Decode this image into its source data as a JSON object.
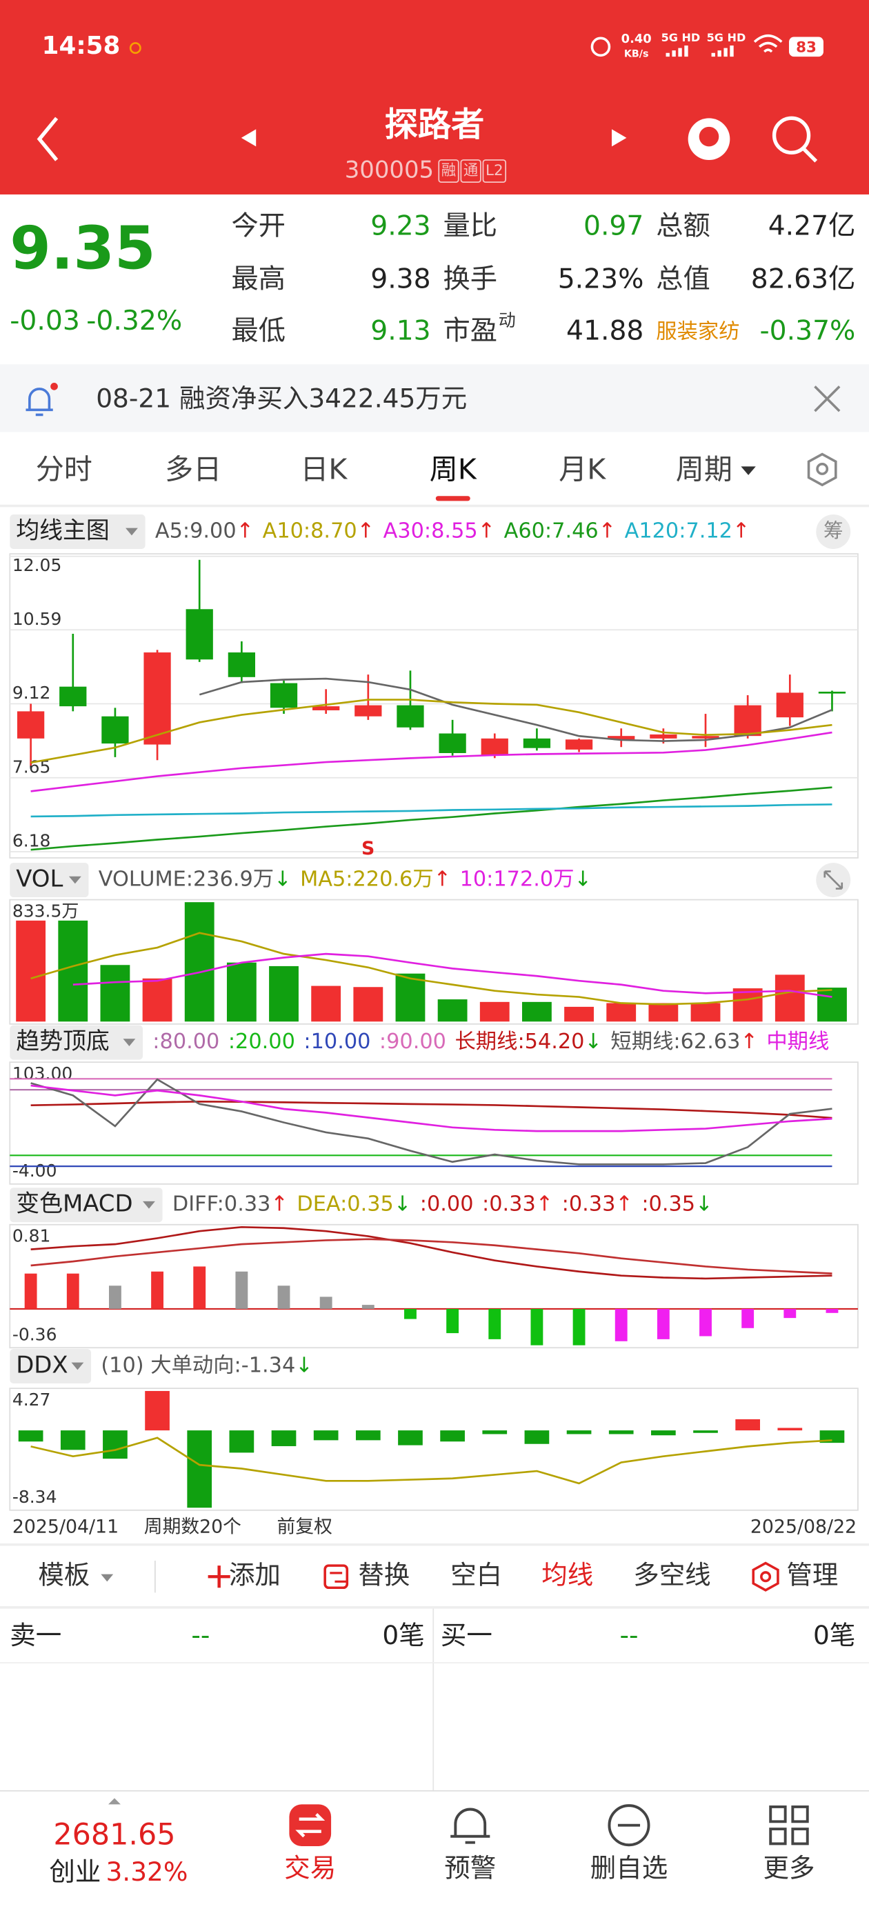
{
  "status_bar": {
    "time": "14:58",
    "speed": "0.40",
    "speed_unit": "KB/s",
    "net_1": "5G HD",
    "net_2": "5G HD",
    "battery": "83"
  },
  "header": {
    "title": "探路者",
    "code": "300005",
    "badges": [
      "融",
      "通",
      "L2"
    ]
  },
  "quote": {
    "price": "9.35",
    "change": "-0.03",
    "change_pct": "-0.32%",
    "price_color": "#1a9a1a",
    "fields": [
      [
        {
          "label": "今开",
          "value": "9.23",
          "color": "#1a9a1a"
        },
        {
          "label": "最高",
          "value": "9.38",
          "color": "#222222"
        },
        {
          "label": "最低",
          "value": "9.13",
          "color": "#1a9a1a"
        }
      ],
      [
        {
          "label": "量比",
          "value": "0.97",
          "color": "#1a9a1a"
        },
        {
          "label": "换手",
          "value": "5.23%",
          "color": "#222222"
        },
        {
          "label": "市盈",
          "sup": "动",
          "value": "41.88",
          "color": "#222222"
        }
      ],
      [
        {
          "label": "总额",
          "value": "4.27亿",
          "color": "#222222"
        },
        {
          "label": "总值",
          "value": "82.63亿",
          "color": "#222222"
        },
        {
          "label": "服装家纺",
          "value": "-0.37%",
          "color": "#1a9a1a",
          "label_color": "#e08a00"
        }
      ]
    ]
  },
  "notice": "08-21 融资净买入3422.45万元",
  "tabs": {
    "items": [
      "分时",
      "多日",
      "日K",
      "周K",
      "月K",
      "周期"
    ],
    "active": 3
  },
  "chart_data": [
    {
      "type": "candlestick",
      "indicator": "均线主图",
      "button": "筹",
      "signal": "S",
      "header": [
        {
          "label": "A5:9.00",
          "arrow": "↑",
          "color": "#555555",
          "arrow_color": "#e02020"
        },
        {
          "label": "A10:8.70",
          "arrow": "↑",
          "color": "#b5a200",
          "arrow_color": "#e02020"
        },
        {
          "label": "A30:8.55",
          "arrow": "↑",
          "color": "#e020e0",
          "arrow_color": "#e02020"
        },
        {
          "label": "A60:7.46",
          "arrow": "↑",
          "color": "#1a9a1a",
          "arrow_color": "#e02020"
        },
        {
          "label": "A120:7.12",
          "arrow": "↑",
          "color": "#20b0c8",
          "arrow_color": "#e02020"
        }
      ],
      "ylim": [
        6.18,
        12.05
      ],
      "yticks": [
        12.05,
        10.59,
        9.12,
        7.65,
        6.18
      ],
      "grid": true,
      "up_color": "#f03030",
      "down_color": "#10a010",
      "open": [
        8.43,
        9.46,
        8.87,
        8.31,
        11,
        10.14,
        9.53,
        8.99,
        8.87,
        9.09,
        8.53,
        8.09,
        8.43,
        8.21,
        8.41,
        8.43,
        8.43,
        8.48,
        8.85,
        9.36
      ],
      "high": [
        9.12,
        10.51,
        9.04,
        10.19,
        11.98,
        10.36,
        9.58,
        9.41,
        9.7,
        9.78,
        8.8,
        8.53,
        8.63,
        8.43,
        8.63,
        8.63,
        8.92,
        9.29,
        9.7,
        9.38
      ],
      "low": [
        7.89,
        8.97,
        8.06,
        8,
        9.95,
        9.53,
        8.92,
        8.92,
        8.8,
        8.6,
        8.09,
        8.04,
        8.19,
        8.16,
        8.26,
        8.33,
        8.26,
        8.43,
        8.68,
        8.97
      ],
      "close": [
        8.97,
        9.07,
        8.33,
        10.14,
        10,
        9.65,
        9.04,
        9.07,
        9.09,
        8.65,
        8.14,
        8.43,
        8.24,
        8.41,
        8.48,
        8.51,
        8.48,
        9.09,
        9.34,
        9.35
      ],
      "lines": [
        {
          "color": "#666666",
          "values": [
            null,
            null,
            null,
            null,
            9.3,
            9.55,
            9.6,
            9.62,
            9.55,
            9.4,
            9.1,
            8.9,
            8.7,
            8.48,
            8.4,
            8.38,
            8.4,
            8.5,
            8.65,
            9
          ]
        },
        {
          "color": "#b5a200",
          "values": [
            7.95,
            8.1,
            8.25,
            8.5,
            8.75,
            8.9,
            9,
            9.1,
            9.2,
            9.2,
            9.15,
            9.12,
            9.1,
            8.95,
            8.75,
            8.55,
            8.5,
            8.52,
            8.6,
            8.7
          ]
        },
        {
          "color": "#e020e0",
          "values": [
            7.38,
            7.48,
            7.58,
            7.68,
            7.76,
            7.84,
            7.9,
            7.96,
            8,
            8.04,
            8.07,
            8.1,
            8.12,
            8.13,
            8.14,
            8.15,
            8.2,
            8.3,
            8.42,
            8.55
          ]
        },
        {
          "color": "#1a9a1a",
          "values": [
            6.22,
            6.29,
            6.35,
            6.42,
            6.48,
            6.55,
            6.61,
            6.68,
            6.74,
            6.81,
            6.87,
            6.94,
            7,
            7.07,
            7.13,
            7.2,
            7.26,
            7.33,
            7.39,
            7.46
          ]
        },
        {
          "color": "#20b0c8",
          "values": [
            6.88,
            6.89,
            6.91,
            6.92,
            6.93,
            6.94,
            6.96,
            6.97,
            6.98,
            6.99,
            7.01,
            7.02,
            7.03,
            7.04,
            7.06,
            7.07,
            7.08,
            7.09,
            7.11,
            7.12
          ]
        }
      ]
    },
    {
      "type": "bar",
      "indicator": "VOL",
      "header": [
        {
          "label": "VOLUME:236.9万",
          "arrow": "↓",
          "color": "#555555",
          "arrow_color": "#10a010"
        },
        {
          "label": "MA5:220.6万",
          "arrow": "↑",
          "color": "#b5a200",
          "arrow_color": "#e02020"
        },
        {
          "label": "10:172.0万",
          "arrow": "↓",
          "color": "#e020e0",
          "arrow_color": "#10a010"
        }
      ],
      "ylim": [
        0,
        833.5
      ],
      "yticks": [
        {
          "value": 833.5,
          "label": "833.5万"
        }
      ],
      "values": [
        705,
        705,
        395,
        301,
        833.5,
        412,
        387,
        249,
        241,
        335,
        155,
        137,
        137,
        103,
        129,
        129,
        129,
        232,
        327,
        236.9
      ],
      "colors": [
        "#f03030",
        "#10a010",
        "#10a010",
        "#f03030",
        "#10a010",
        "#10a010",
        "#10a010",
        "#f03030",
        "#f03030",
        "#10a010",
        "#10a010",
        "#f03030",
        "#10a010",
        "#f03030",
        "#f03030",
        "#f03030",
        "#f03030",
        "#f03030",
        "#f03030",
        "#10a010"
      ],
      "lines": [
        {
          "color": "#b5a200",
          "values": [
            301,
            387,
            464,
            516,
            619,
            559,
            473,
            430,
            378,
            301,
            258,
            215,
            189,
            172,
            129,
            120,
            129,
            155,
            206,
            220.6
          ]
        },
        {
          "color": "#e020e0",
          "values": [
            null,
            258,
            275,
            284,
            344,
            412,
            447,
            473,
            455,
            412,
            370,
            344,
            318,
            284,
            258,
            215,
            198,
            206,
            215,
            172
          ]
        }
      ]
    },
    {
      "type": "line",
      "indicator": "趋势顶底",
      "header": [
        {
          "label": ":80.00",
          "color": "#b06aa8"
        },
        {
          "label": ":20.00",
          "color": "#18b818"
        },
        {
          "label": ":10.00",
          "color": "#3048b8"
        },
        {
          "label": ":90.00",
          "color": "#d86ab8"
        },
        {
          "label": "长期线:54.20",
          "arrow": "↓",
          "color": "#c01818",
          "arrow_color": "#10a010"
        },
        {
          "label": "短期线:62.63",
          "arrow": "↑",
          "color": "#555555",
          "arrow_color": "#e02020"
        },
        {
          "label": "中期线",
          "color": "#e020e0"
        }
      ],
      "ylim": [
        -4,
        103
      ],
      "yticks": [
        {
          "value": 103,
          "label": "103.00"
        },
        {
          "value": -4,
          "label": "-4.00"
        }
      ],
      "ref_lines": [
        {
          "value": 80,
          "color": "#b06aa8"
        },
        {
          "value": 20,
          "color": "#18b818"
        },
        {
          "value": 10,
          "color": "#3048b8"
        },
        {
          "value": 90,
          "color": "#d86ab8"
        }
      ],
      "lines": [
        {
          "color": "#b01818",
          "values": [
            65.8,
            66.5,
            67.5,
            68.5,
            69.2,
            69,
            68.5,
            68,
            67.5,
            67,
            66.5,
            66,
            65,
            64,
            63,
            62,
            60.5,
            59,
            57,
            54.2
          ]
        },
        {
          "color": "#666666",
          "values": [
            86.1,
            74.8,
            46.7,
            89.5,
            67,
            60.2,
            50.1,
            41.1,
            35.4,
            24.2,
            14,
            20.8,
            15.2,
            11.8,
            11.8,
            11.8,
            12.9,
            27.5,
            58,
            62.63
          ]
        },
        {
          "color": "#e020e0",
          "values": [
            83.9,
            79.4,
            74.8,
            79.4,
            74.8,
            69.2,
            62.5,
            59.1,
            54.6,
            50.1,
            45.6,
            43.3,
            42.2,
            42.2,
            42.2,
            43.3,
            44.4,
            47.8,
            51.2,
            53.5
          ]
        }
      ]
    },
    {
      "type": "bar",
      "indicator": "变色MACD",
      "header": [
        {
          "label": "DIFF:0.33",
          "arrow": "↑",
          "color": "#555555",
          "arrow_color": "#e02020"
        },
        {
          "label": "DEA:0.35",
          "arrow": "↓",
          "color": "#b5a200",
          "arrow_color": "#10a010"
        },
        {
          "label": ":0.00",
          "color": "#c01818"
        },
        {
          "label": ":0.33",
          "arrow": "↑",
          "color": "#c01818",
          "arrow_color": "#e02020"
        },
        {
          "label": ":0.33",
          "arrow": "↑",
          "color": "#c01818",
          "arrow_color": "#e02020"
        },
        {
          "label": ":0.35",
          "arrow": "↓",
          "color": "#c01818",
          "arrow_color": "#10a010"
        }
      ],
      "ylim": [
        -0.36,
        0.81
      ],
      "yticks": [
        0.81,
        -0.36
      ],
      "baseline_color": "#d02020",
      "values": [
        0.35,
        0.35,
        0.23,
        0.37,
        0.42,
        0.37,
        0.23,
        0.12,
        0.04,
        -0.1,
        -0.24,
        -0.3,
        -0.36,
        -0.36,
        -0.32,
        -0.3,
        -0.27,
        -0.19,
        -0.09,
        -0.04
      ],
      "colors": [
        "#f03030",
        "#f03030",
        "#999999",
        "#f03030",
        "#f03030",
        "#999999",
        "#999999",
        "#999999",
        "#999999",
        "#10c010",
        "#10c010",
        "#10c010",
        "#10c010",
        "#10c010",
        "#f020f0",
        "#f020f0",
        "#f020f0",
        "#f020f0",
        "#f020f0",
        "#f020f0"
      ],
      "lines": [
        {
          "color": "#b01818",
          "values": [
            0.59,
            0.62,
            0.64,
            0.7,
            0.77,
            0.81,
            0.8,
            0.77,
            0.72,
            0.65,
            0.56,
            0.48,
            0.42,
            0.37,
            0.33,
            0.31,
            0.3,
            0.31,
            0.32,
            0.33
          ]
        },
        {
          "color": "#c03030",
          "values": [
            0.43,
            0.47,
            0.52,
            0.56,
            0.6,
            0.64,
            0.66,
            0.68,
            0.69,
            0.68,
            0.66,
            0.63,
            0.59,
            0.55,
            0.5,
            0.46,
            0.42,
            0.39,
            0.37,
            0.35
          ]
        }
      ]
    },
    {
      "type": "bar",
      "indicator": "DDX",
      "header": [
        {
          "label": "(10) 大单动向:-1.34",
          "arrow": "↓",
          "color": "#555555",
          "arrow_color": "#10a010"
        }
      ],
      "ylim": [
        -8.34,
        4.27
      ],
      "yticks": [
        4.27,
        -8.34
      ],
      "up_color": "#f03030",
      "down_color": "#10a010",
      "values": [
        -1.2,
        -2.1,
        -3.05,
        4.25,
        -8.34,
        -2.4,
        -1.7,
        -1.06,
        -1.06,
        -1.6,
        -1.2,
        -0.4,
        -1.46,
        -0.4,
        -0.4,
        -0.53,
        -0.27,
        1.2,
        0.27,
        -1.34
      ],
      "lines": [
        {
          "color": "#b5a200",
          "values": [
            -1.73,
            -2.79,
            -2.12,
            -0.8,
            -3.72,
            -4.12,
            -4.78,
            -5.44,
            -5.44,
            -5.31,
            -5.18,
            -4.78,
            -4.38,
            -5.71,
            -3.45,
            -2.79,
            -2.26,
            -1.73,
            -1.33,
            -1.06
          ]
        }
      ]
    }
  ],
  "chart_footer": {
    "start": "2025/04/11",
    "count": "周期数20个",
    "adjust": "前复权",
    "end": "2025/08/22"
  },
  "toolbar": {
    "items": [
      "模板",
      "添加",
      "替换",
      "空白",
      "均线",
      "多空线",
      "管理"
    ],
    "active": 4
  },
  "order_book": {
    "sell": {
      "label": "卖一",
      "price": "--",
      "volume": "0笔"
    },
    "buy": {
      "label": "买一",
      "price": "--",
      "volume": "0笔"
    }
  },
  "bottom_nav": {
    "index_value": "2681.65",
    "index_name": "创业",
    "index_change": "3.32%",
    "items": [
      "交易",
      "预警",
      "删自选",
      "更多"
    ],
    "active": 0
  }
}
